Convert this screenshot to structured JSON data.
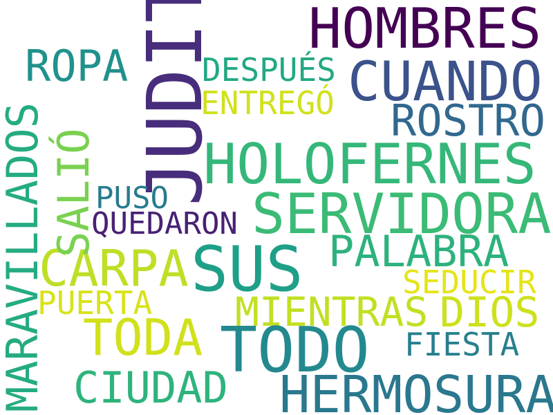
{
  "words": {
    "hombres": {
      "text": "HOMBRES",
      "color": "#440154"
    },
    "cuando": {
      "text": "CUANDO",
      "color": "#3b528b"
    },
    "ropa": {
      "text": "ROPA",
      "color": "#21918c"
    },
    "despues": {
      "text": "DESPUÉS",
      "color": "#22a884"
    },
    "entrego": {
      "text": "ENTREGÓ",
      "color": "#d0e11c"
    },
    "rostro": {
      "text": "ROSTRO",
      "color": "#31688e"
    },
    "judit": {
      "text": "JUDIT",
      "color": "#472d7b"
    },
    "holofernes": {
      "text": "HOLOFERNES",
      "color": "#35b779"
    },
    "servidora": {
      "text": "SERVIDORA",
      "color": "#3bbb75"
    },
    "puso": {
      "text": "PUSO",
      "color": "#287c8e"
    },
    "quedaron": {
      "text": "QUEDARON",
      "color": "#482173"
    },
    "palabra": {
      "text": "PALABRA",
      "color": "#2db27d"
    },
    "carpa": {
      "text": "CARPA",
      "color": "#bddf26"
    },
    "sus": {
      "text": "SUS",
      "color": "#1f9f88"
    },
    "seducir": {
      "text": "SEDUCIR",
      "color": "#e5e419"
    },
    "puerta": {
      "text": "PUERTA",
      "color": "#d8e219"
    },
    "mientras": {
      "text": "MIENTRAS",
      "color": "#c2df23"
    },
    "dios": {
      "text": "DIOS",
      "color": "#cde11d"
    },
    "toda": {
      "text": "TODA",
      "color": "#d0e11c"
    },
    "todo": {
      "text": "TODO",
      "color": "#23898e"
    },
    "fiesta": {
      "text": "FIESTA",
      "color": "#277f8e"
    },
    "ciudad": {
      "text": "CIUDAD",
      "color": "#2eb37c"
    },
    "hermosura": {
      "text": "HERMOSURA",
      "color": "#2a788e"
    },
    "maravillados": {
      "text": "MARAVILLADOS",
      "color": "#25ab82"
    },
    "salio": {
      "text": "SALIÓ",
      "color": "#7ad151"
    }
  }
}
